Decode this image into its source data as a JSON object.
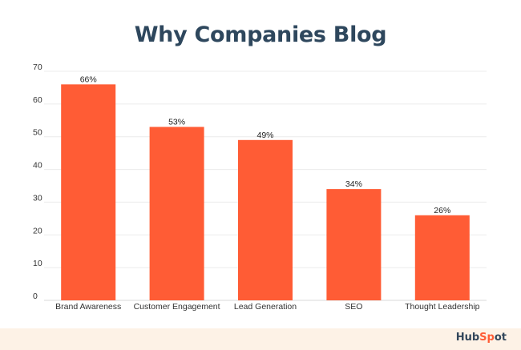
{
  "chart_data": {
    "type": "bar",
    "title": "Why Companies Blog",
    "categories": [
      "Brand Awareness",
      "Customer Engagement",
      "Lead Generation",
      "SEO",
      "Thought Leadership"
    ],
    "values": [
      66,
      53,
      49,
      34,
      26
    ],
    "data_labels": [
      "66%",
      "53%",
      "49%",
      "34%",
      "26%"
    ],
    "xlabel": "",
    "ylabel": "",
    "ylim": [
      0,
      70
    ],
    "yticks": [
      0,
      10,
      20,
      30,
      40,
      50,
      60,
      70
    ],
    "grid": true,
    "legend": "none",
    "bar_color": "#ff5c35"
  },
  "brand": {
    "logo_text": "HubSpot",
    "logo_color": "#33475b",
    "accent_color": "#ff5c35",
    "footer_color": "#fdf2e6"
  }
}
